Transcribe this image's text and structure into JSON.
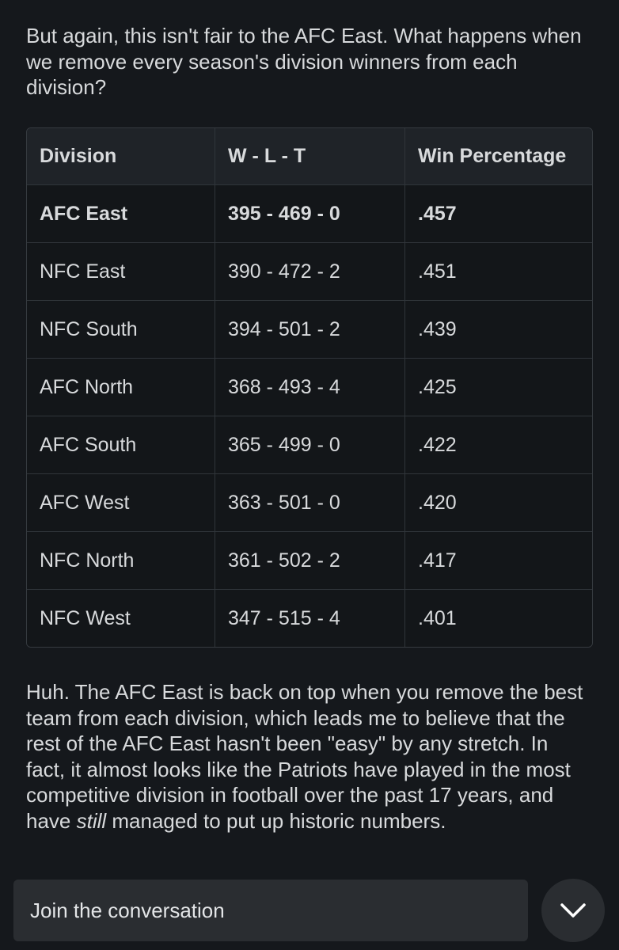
{
  "intro": "But again, this isn't fair to the AFC East. What happens when we remove every season's division winners from each division?",
  "table": {
    "header": [
      "Division",
      "W - L - T",
      "Win Percentage"
    ],
    "rows": [
      [
        "AFC East",
        "395 - 469 - 0",
        ".457"
      ],
      [
        "NFC East",
        "390 - 472 - 2",
        ".451"
      ],
      [
        "NFC South",
        "394 - 501 - 2",
        ".439"
      ],
      [
        "AFC North",
        "368 - 493 - 4",
        ".425"
      ],
      [
        "AFC South",
        "365 - 499 - 0",
        ".422"
      ],
      [
        "AFC West",
        "363 - 501 - 0",
        ".420"
      ],
      [
        "NFC North",
        "361 - 502 - 2",
        ".417"
      ],
      [
        "NFC West",
        "347 - 515 - 4",
        ".401"
      ]
    ]
  },
  "closing": {
    "before": "Huh. The AFC East is back on top when you remove the best team from each division, which leads me to believe that the rest of the AFC East hasn't been \"easy\" by any stretch. In fact, it almost looks like the Patriots have played in the most competitive division in football over the past 17 years, and have ",
    "emphasis": "still",
    "after": " managed to put up historic numbers."
  },
  "footer": {
    "input_placeholder": "Join the conversation"
  }
}
